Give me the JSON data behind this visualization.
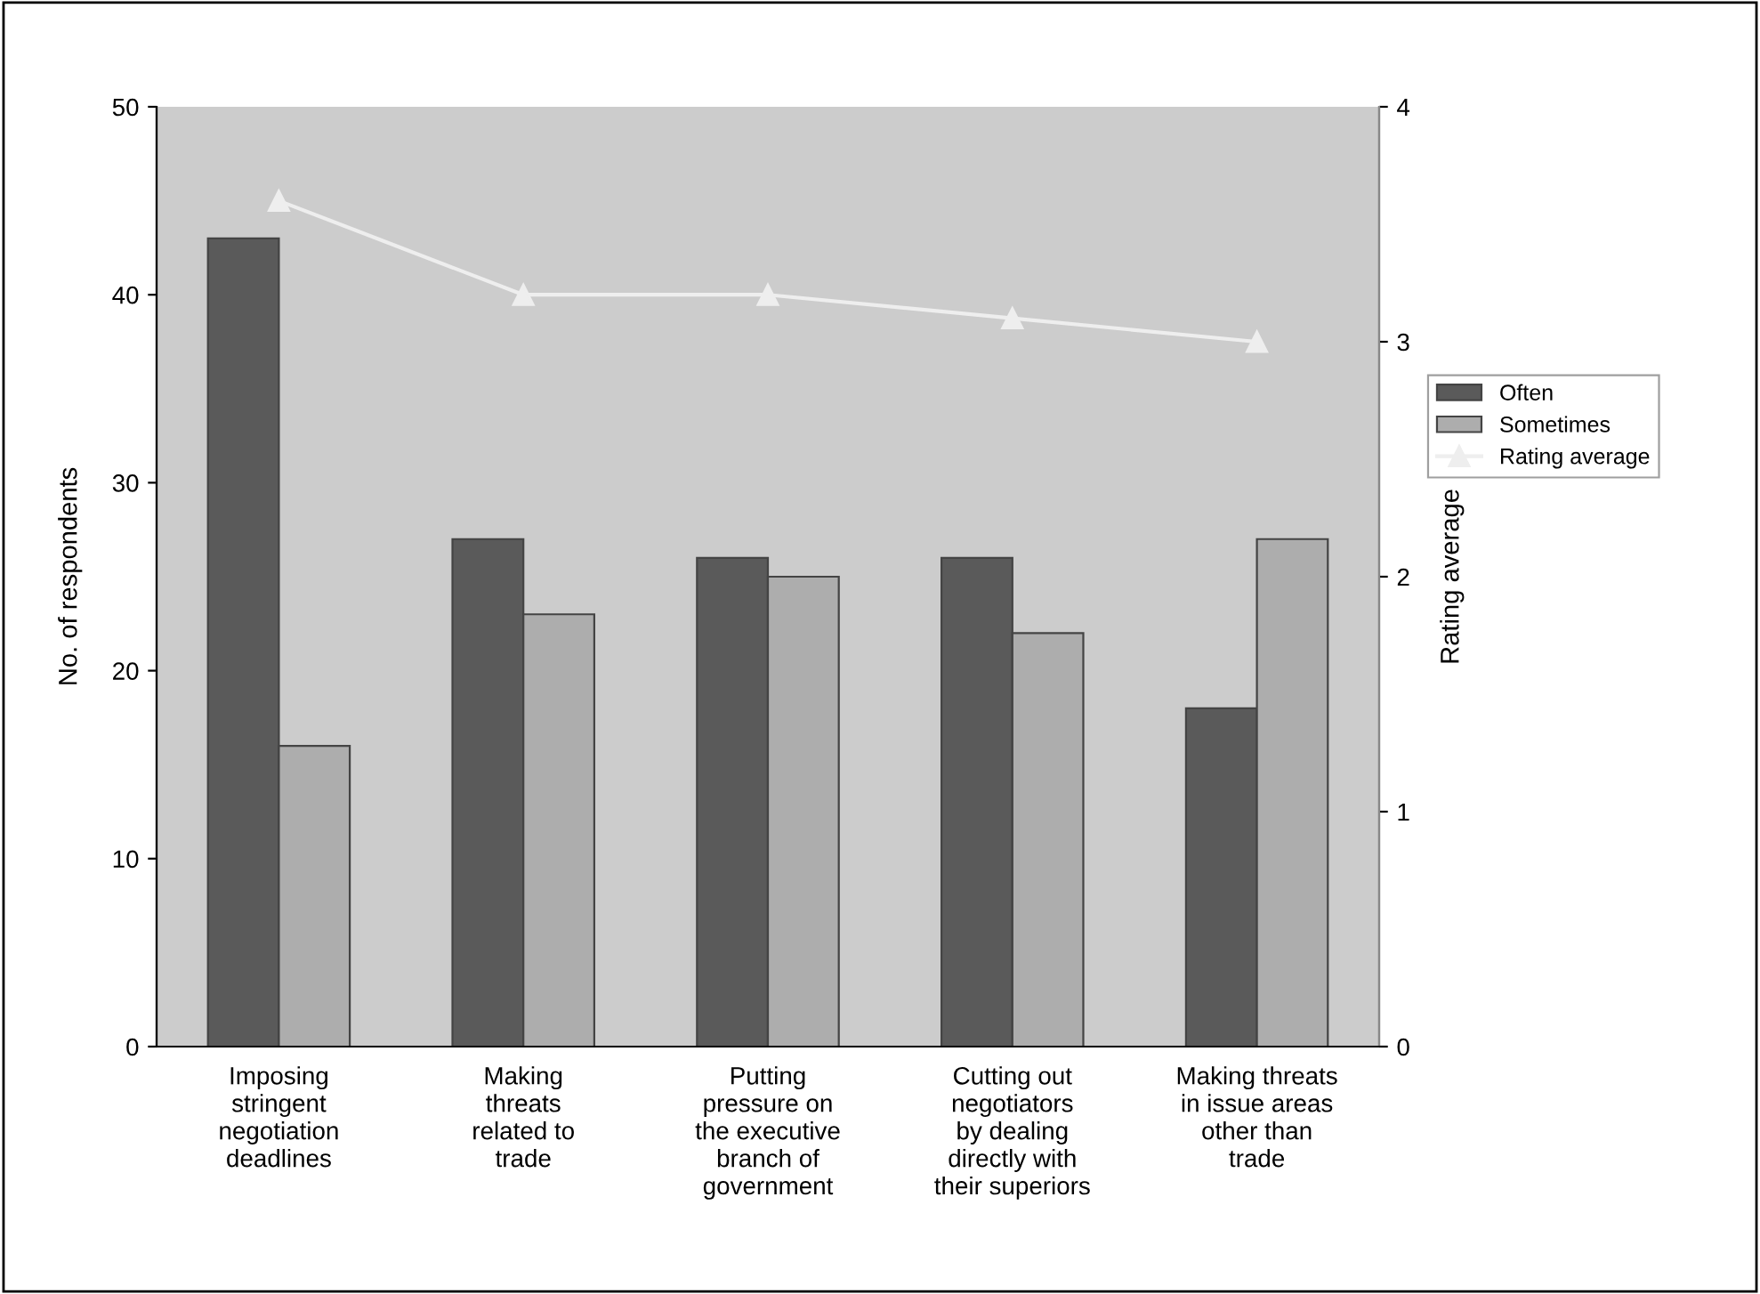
{
  "chart_data": {
    "type": "bar",
    "xlabel": null,
    "ylabel": "No. of respondents",
    "y2label": "Rating average",
    "categories": [
      "Imposing\nstringent\nnegotiation\ndeadlines",
      "Making\nthreats\nrelated to\ntrade",
      "Putting\npressure on\nthe executive\nbranch of\ngovernment",
      "Cutting out\nnegotiators\nby dealing\ndirectly with\ntheir superiors",
      "Making threats\nin issue areas\nother than\ntrade"
    ],
    "series": [
      {
        "name": "Often",
        "color": "#5a5a5a",
        "values": [
          43,
          27,
          26,
          26,
          18
        ]
      },
      {
        "name": "Sometimes",
        "color": "#adadad",
        "values": [
          16,
          23,
          25,
          22,
          27
        ]
      },
      {
        "name": "Rating average",
        "type": "line",
        "axis": "y2",
        "color": "#eeeeee",
        "marker": "triangle",
        "values": [
          3.6,
          3.2,
          3.2,
          3.1,
          3.0
        ]
      }
    ],
    "ylim": [
      0,
      50
    ],
    "yticks": [
      0,
      10,
      20,
      30,
      40,
      50
    ],
    "y2lim": [
      0,
      4
    ],
    "y2ticks": [
      0,
      1,
      2,
      3,
      4
    ],
    "grid": false,
    "legend": "right"
  }
}
